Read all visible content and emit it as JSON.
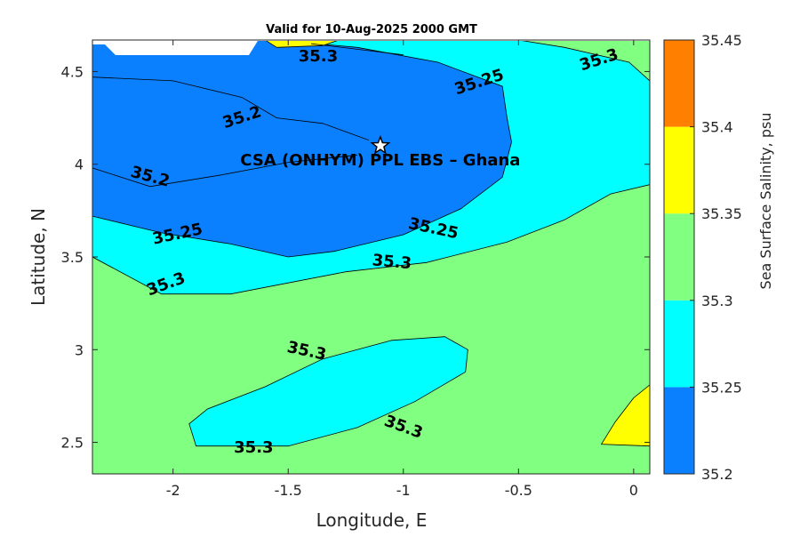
{
  "title": "Valid for 10-Aug-2025 2000 GMT",
  "xlabel": "Longitude, E",
  "ylabel": "Latitude, N",
  "site_label": "CSA (ONHYM) PPL EBS  – Ghana",
  "site": {
    "lon": -1.1,
    "lat": 4.1,
    "marker": "star"
  },
  "colorbar": {
    "label": "Sea Surface Salinity, psu",
    "levels": [
      35.2,
      35.25,
      35.3,
      35.35,
      35.4,
      35.45
    ],
    "tick_labels": [
      "35.2",
      "35.25",
      "35.3",
      "35.35",
      "35.4",
      "35.45"
    ],
    "colors": [
      "#0a80ff",
      "#00ffff",
      "#80ff80",
      "#ffff00",
      "#ff8000"
    ]
  },
  "x_ticks": [
    {
      "value": -2,
      "label": "-2"
    },
    {
      "value": -1.5,
      "label": "-1.5"
    },
    {
      "value": -1,
      "label": "-1"
    },
    {
      "value": -0.5,
      "label": "-0.5"
    },
    {
      "value": 0,
      "label": "0"
    }
  ],
  "y_ticks": [
    {
      "value": 2.5,
      "label": "2.5"
    },
    {
      "value": 3,
      "label": "3"
    },
    {
      "value": 3.5,
      "label": "3.5"
    },
    {
      "value": 4,
      "label": "4"
    },
    {
      "value": 4.5,
      "label": "4.5"
    }
  ],
  "chart_data": {
    "type": "heatmap",
    "title": "Valid for 10-Aug-2025 2000 GMT",
    "xlabel": "Longitude, E",
    "ylabel": "Latitude, N",
    "xlim": [
      -2.35,
      0.07
    ],
    "ylim": [
      2.33,
      4.67
    ],
    "grid": false,
    "background_color": "#80ff80",
    "regions": [
      {
        "name": "cyan-north",
        "color": "#00ffff",
        "points": [
          [
            -2.35,
            4.67
          ],
          [
            -0.5,
            4.67
          ],
          [
            -0.3,
            4.63
          ],
          [
            -0.02,
            4.55
          ],
          [
            0.07,
            4.45
          ],
          [
            0.07,
            3.89
          ],
          [
            -0.1,
            3.84
          ],
          [
            -0.3,
            3.7
          ],
          [
            -0.55,
            3.58
          ],
          [
            -0.9,
            3.47
          ],
          [
            -1.25,
            3.42
          ],
          [
            -1.75,
            3.3
          ],
          [
            -2.05,
            3.3
          ],
          [
            -2.35,
            3.5
          ]
        ]
      },
      {
        "name": "blue-core",
        "color": "#0a80ff",
        "points": [
          [
            -2.35,
            4.67
          ],
          [
            -1.55,
            4.67
          ],
          [
            -1.2,
            4.63
          ],
          [
            -0.85,
            4.55
          ],
          [
            -0.57,
            4.42
          ],
          [
            -0.55,
            4.25
          ],
          [
            -0.53,
            4.12
          ],
          [
            -0.57,
            3.93
          ],
          [
            -0.75,
            3.76
          ],
          [
            -1.0,
            3.62
          ],
          [
            -1.3,
            3.53
          ],
          [
            -1.5,
            3.5
          ],
          [
            -1.75,
            3.57
          ],
          [
            -2.05,
            3.63
          ],
          [
            -2.35,
            3.72
          ]
        ]
      },
      {
        "name": "cyan-south",
        "color": "#00ffff",
        "points": [
          [
            -1.93,
            2.6
          ],
          [
            -1.85,
            2.68
          ],
          [
            -1.6,
            2.8
          ],
          [
            -1.35,
            2.95
          ],
          [
            -1.05,
            3.05
          ],
          [
            -0.82,
            3.07
          ],
          [
            -0.72,
            3.0
          ],
          [
            -0.73,
            2.88
          ],
          [
            -0.95,
            2.72
          ],
          [
            -1.2,
            2.58
          ],
          [
            -1.5,
            2.48
          ],
          [
            -1.9,
            2.48
          ]
        ]
      },
      {
        "name": "yellow-top",
        "color": "#ffff00",
        "points": [
          [
            -1.6,
            4.67
          ],
          [
            -1.28,
            4.67
          ],
          [
            -1.35,
            4.64
          ],
          [
            -1.55,
            4.63
          ]
        ]
      },
      {
        "name": "yellow-se",
        "color": "#ffff00",
        "points": [
          [
            0.07,
            2.81
          ],
          [
            0.0,
            2.74
          ],
          [
            -0.08,
            2.61
          ],
          [
            -0.14,
            2.49
          ],
          [
            0.07,
            2.48
          ]
        ]
      }
    ],
    "contours": [
      {
        "level": 35.2,
        "points": [
          [
            -2.35,
            4.47
          ],
          [
            -2.0,
            4.45
          ],
          [
            -1.7,
            4.36
          ],
          [
            -1.55,
            4.25
          ],
          [
            -1.35,
            4.22
          ],
          [
            -1.15,
            4.13
          ]
        ]
      },
      {
        "level": 35.2,
        "points": [
          [
            -2.35,
            3.98
          ],
          [
            -2.1,
            3.88
          ],
          [
            -1.8,
            3.94
          ],
          [
            -1.5,
            4.01
          ],
          [
            -1.2,
            4.05
          ]
        ]
      },
      {
        "level": 35.3,
        "points": [
          [
            -1.4,
            4.65
          ],
          [
            -1.2,
            4.62
          ],
          [
            -1.0,
            4.59
          ]
        ]
      }
    ],
    "contour_labels": [
      {
        "text": "35.3",
        "lon": -1.37,
        "lat": 4.58,
        "angle": 0
      },
      {
        "text": "35.3",
        "lon": -0.15,
        "lat": 4.56,
        "angle": 18
      },
      {
        "text": "35.25",
        "lon": -0.67,
        "lat": 4.44,
        "angle": 18
      },
      {
        "text": "35.2",
        "lon": -1.7,
        "lat": 4.25,
        "angle": 18
      },
      {
        "text": "35.2",
        "lon": -2.1,
        "lat": 3.93,
        "angle": -15
      },
      {
        "text": "35.25",
        "lon": -1.98,
        "lat": 3.62,
        "angle": 12
      },
      {
        "text": "35.25",
        "lon": -0.87,
        "lat": 3.65,
        "angle": -12
      },
      {
        "text": "35.3",
        "lon": -1.05,
        "lat": 3.47,
        "angle": -5
      },
      {
        "text": "35.3",
        "lon": -2.03,
        "lat": 3.35,
        "angle": 20
      },
      {
        "text": "35.3",
        "lon": -1.42,
        "lat": 2.99,
        "angle": -12
      },
      {
        "text": "35.3",
        "lon": -1.0,
        "lat": 2.58,
        "angle": -20
      },
      {
        "text": "35.3",
        "lon": -1.65,
        "lat": 2.47,
        "angle": 0
      }
    ]
  }
}
